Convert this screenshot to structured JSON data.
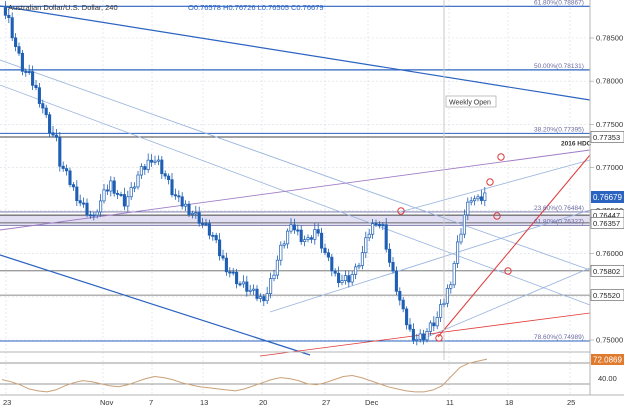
{
  "header": {
    "instrument": "Australian Dollar/U.S. Dollar, 240",
    "ohlc": "O0.76578  H0.76726  L0.76505  C0.76679"
  },
  "colors": {
    "candle_body": "#1e5fb4",
    "grid": "#d8dde6",
    "fib_band": "#d9d4ee",
    "channel_blue": "#2b63c0",
    "channel_light": "#9bb5de",
    "purple_line": "#a07cc6",
    "red_line": "#e03a3a",
    "rsi_line": "#c9a178",
    "current_price_box": "#2b63c0",
    "rsi_label_box": "#e07a2d"
  },
  "chart_data": [
    {
      "type": "candlestick",
      "title": "Australian Dollar/U.S. Dollar, 240",
      "x_tick_labels": [
        "23",
        "Nov",
        "7",
        "13",
        "20",
        "27",
        "Dec",
        "11",
        "18",
        "25"
      ],
      "y_tick_labels": [
        "0.78500",
        "0.78000",
        "0.77500",
        "0.77000",
        "0.76500",
        "0.76000",
        "0.75500",
        "0.75000"
      ],
      "ylim": [
        0.748,
        0.7895
      ],
      "grid": true,
      "current_price": "0.76679",
      "price_labels": [
        "0.77353",
        "0.76447",
        "0.76357",
        "0.75802",
        "0.75520"
      ],
      "fib_labels": [
        {
          "text": "61.80%(0.78867)",
          "value": 0.78867
        },
        {
          "text": "50.00%(0.78131)",
          "value": 0.78131
        },
        {
          "text": "38.20%(0.77395)",
          "value": 0.77395
        },
        {
          "text": "23.60%(0.76484)",
          "value": 0.76484
        },
        {
          "text": "61.80%(0.76327)",
          "value": 0.76327
        },
        {
          "text": "78.60%(0.74989)",
          "value": 0.74989
        }
      ],
      "annotations": [
        "Weekly Open",
        "2016 HDC"
      ],
      "close_path": [
        [
          0,
          0.7885
        ],
        [
          2,
          0.787
        ],
        [
          4,
          0.784
        ],
        [
          6,
          0.7815
        ],
        [
          8,
          0.7805
        ],
        [
          10,
          0.779
        ],
        [
          12,
          0.777
        ],
        [
          14,
          0.7745
        ],
        [
          16,
          0.773
        ],
        [
          17,
          0.7705
        ],
        [
          19,
          0.769
        ],
        [
          21,
          0.7675
        ],
        [
          23,
          0.766
        ],
        [
          25,
          0.765
        ],
        [
          27,
          0.764
        ],
        [
          28,
          0.7652
        ],
        [
          30,
          0.7668
        ],
        [
          32,
          0.7682
        ],
        [
          34,
          0.767
        ],
        [
          36,
          0.766
        ],
        [
          38,
          0.7672
        ],
        [
          40,
          0.769
        ],
        [
          42,
          0.77
        ],
        [
          44,
          0.7712
        ],
        [
          46,
          0.7705
        ],
        [
          48,
          0.769
        ],
        [
          50,
          0.7672
        ],
        [
          52,
          0.766
        ],
        [
          54,
          0.7655
        ],
        [
          56,
          0.7648
        ],
        [
          58,
          0.764
        ],
        [
          60,
          0.763
        ],
        [
          62,
          0.762
        ],
        [
          64,
          0.76
        ],
        [
          66,
          0.7585
        ],
        [
          68,
          0.7575
        ],
        [
          70,
          0.7565
        ],
        [
          72,
          0.756
        ],
        [
          74,
          0.7553
        ],
        [
          76,
          0.7548
        ],
        [
          78,
          0.7555
        ],
        [
          80,
          0.758
        ],
        [
          82,
          0.7605
        ],
        [
          84,
          0.7625
        ],
        [
          86,
          0.763
        ],
        [
          88,
          0.762
        ],
        [
          90,
          0.7615
        ],
        [
          92,
          0.7628
        ],
        [
          94,
          0.761
        ],
        [
          96,
          0.759
        ],
        [
          98,
          0.7575
        ],
        [
          100,
          0.757
        ],
        [
          102,
          0.7572
        ],
        [
          104,
          0.758
        ],
        [
          106,
          0.76
        ],
        [
          108,
          0.7625
        ],
        [
          110,
          0.764
        ],
        [
          112,
          0.763
        ],
        [
          114,
          0.759
        ],
        [
          116,
          0.756
        ],
        [
          118,
          0.753
        ],
        [
          120,
          0.751
        ],
        [
          122,
          0.7502
        ],
        [
          124,
          0.7505
        ],
        [
          126,
          0.7515
        ],
        [
          128,
          0.7525
        ],
        [
          130,
          0.7545
        ],
        [
          132,
          0.757
        ],
        [
          134,
          0.761
        ],
        [
          136,
          0.7645
        ],
        [
          138,
          0.7665
        ],
        [
          140,
          0.766
        ],
        [
          142,
          0.7668
        ]
      ]
    },
    {
      "type": "line",
      "title": "",
      "ylim": [
        38,
        75
      ],
      "y_tick_labels": [
        "40.00"
      ],
      "current_value": "72.0869",
      "reference_levels": [
        70,
        40
      ],
      "values": [
        52,
        50,
        47,
        43,
        41,
        40,
        42,
        46,
        49,
        51,
        50,
        48,
        46,
        45,
        47,
        50,
        53,
        55,
        54,
        52,
        49,
        47,
        45,
        44,
        43,
        42,
        41,
        43,
        46,
        49,
        52,
        54,
        53,
        51,
        48,
        47,
        49,
        52,
        55,
        56,
        54,
        51,
        48,
        45,
        43,
        41,
        40,
        40,
        42,
        46,
        55,
        64,
        68,
        70,
        72
      ]
    }
  ]
}
